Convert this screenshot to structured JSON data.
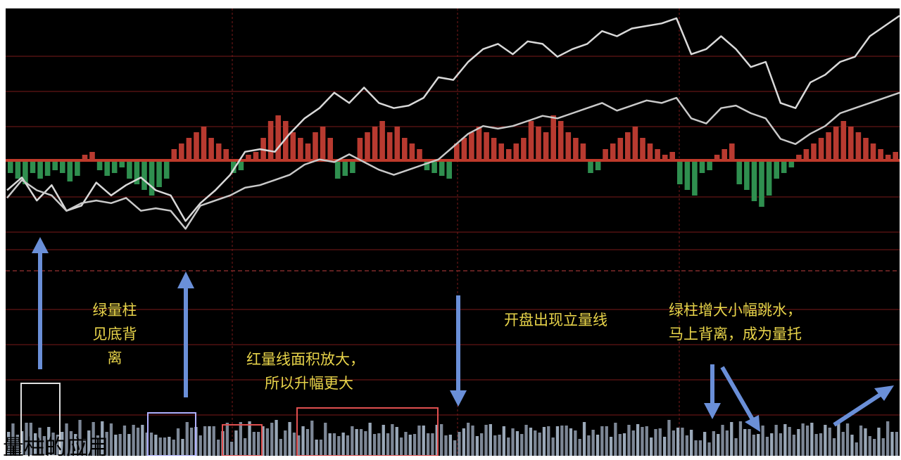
{
  "footer_title": "量柱的应用",
  "annotations": {
    "green_volume": [
      "绿量柱",
      "见底背",
      "离"
    ],
    "red_volume": [
      "红量线面积放大，",
      "所以升幅更大"
    ],
    "open_line": "开盘出现立量线",
    "green_small": [
      "绿柱增大小幅跳水，",
      "马上背离，成为量托"
    ]
  },
  "colors": {
    "background": "#000000",
    "price_line": "#d9d9d9",
    "avg_line": "#c9c9c9",
    "red_bar": "#b83a30",
    "green_bar": "#2f8f4f",
    "grid": "#7a1a1a",
    "arrow": "#6a8fd8",
    "annotation_text": "#e8d44a",
    "box_white": "#e0e0e0",
    "box_red": "#e05050"
  },
  "chart_data": {
    "type": "line",
    "title": "",
    "xlabel": "",
    "ylabel": "",
    "x_range": [
      0,
      120
    ],
    "ylim": [
      0,
      100
    ],
    "grid": true,
    "series": [
      {
        "x": [
          0,
          2,
          4,
          6,
          8,
          10,
          12,
          14,
          16,
          18,
          20,
          22,
          24,
          26,
          28,
          30,
          32,
          34,
          36,
          38,
          40,
          42,
          44,
          46,
          48,
          50,
          52,
          54,
          56,
          58,
          60,
          62,
          64,
          66,
          68,
          70,
          72,
          74,
          76,
          78,
          80,
          82,
          84,
          86,
          88,
          90,
          92,
          94,
          96,
          98,
          100,
          102,
          104,
          106,
          108,
          110,
          112,
          114,
          116,
          118,
          120
        ],
        "values": [
          30,
          35,
          26,
          32,
          22,
          24,
          33,
          28,
          32,
          35,
          30,
          28,
          18,
          25,
          30,
          36,
          45,
          46,
          45,
          52,
          58,
          62,
          68,
          64,
          70,
          64,
          62,
          63,
          66,
          74,
          73,
          80,
          85,
          87,
          83,
          88,
          87,
          82,
          85,
          87,
          92,
          90,
          93,
          94,
          95,
          97,
          83,
          85,
          90,
          85,
          78,
          80,
          64,
          62,
          72,
          75,
          80,
          82,
          90,
          94,
          98
        ]
      },
      {
        "x": [
          0,
          2,
          4,
          6,
          8,
          10,
          12,
          14,
          16,
          18,
          20,
          22,
          24,
          26,
          28,
          30,
          32,
          34,
          36,
          38,
          40,
          42,
          44,
          46,
          48,
          50,
          52,
          54,
          56,
          58,
          60,
          62,
          64,
          66,
          68,
          70,
          72,
          74,
          76,
          78,
          80,
          82,
          84,
          86,
          88,
          90,
          92,
          94,
          96,
          98,
          100,
          102,
          104,
          106,
          108,
          110,
          112,
          114,
          116,
          118,
          120
        ],
        "values": [
          27,
          34,
          30,
          28,
          22,
          25,
          26,
          25,
          27,
          22,
          23,
          22,
          15,
          24,
          26,
          28,
          31,
          32,
          34,
          36,
          40,
          42,
          41,
          44,
          41,
          38,
          36,
          38,
          40,
          42,
          47,
          52,
          55,
          54,
          55,
          57,
          59,
          58,
          60,
          62,
          64,
          61,
          63,
          65,
          64,
          66,
          58,
          56,
          62,
          63,
          60,
          58,
          50,
          48,
          52,
          55,
          60,
          62,
          64,
          66,
          68
        ]
      }
    ],
    "volume_bars": {
      "values": [
        -4,
        -6,
        -8,
        -4,
        -6,
        -5,
        -3,
        -4,
        -7,
        -5,
        2,
        3,
        -3,
        -5,
        -4,
        -2,
        -6,
        -8,
        -10,
        -12,
        -9,
        -6,
        4,
        6,
        8,
        10,
        12,
        8,
        6,
        4,
        -4,
        -3,
        2,
        3,
        8,
        14,
        16,
        14,
        10,
        8,
        6,
        10,
        12,
        8,
        -6,
        -5,
        -4,
        8,
        10,
        12,
        14,
        10,
        12,
        8,
        6,
        4,
        -3,
        -4,
        -5,
        -6,
        6,
        8,
        10,
        12,
        10,
        8,
        6,
        4,
        6,
        8,
        14,
        12,
        10,
        16,
        14,
        10,
        8,
        6,
        -4,
        -3,
        4,
        6,
        8,
        10,
        12,
        8,
        6,
        4,
        2,
        3,
        -8,
        -10,
        -12,
        -4,
        -3,
        2,
        4,
        6,
        -8,
        -10,
        -14,
        -16,
        -12,
        -6,
        -4,
        -2,
        2,
        4,
        6,
        8,
        10,
        12,
        14,
        12,
        10,
        8,
        6,
        4,
        2,
        3
      ]
    }
  }
}
